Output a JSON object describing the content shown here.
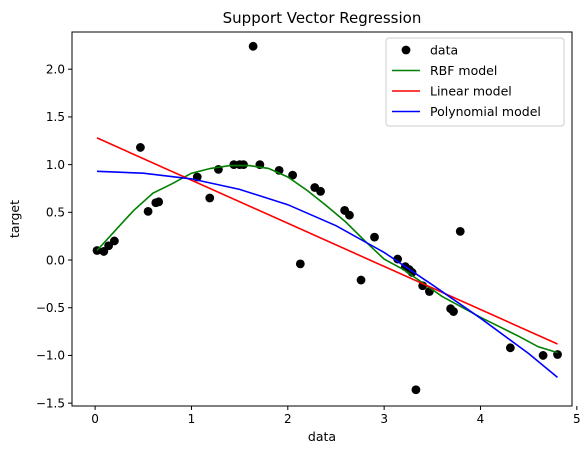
{
  "chart_data": {
    "type": "scatter",
    "title": "Support Vector Regression",
    "xlabel": "data",
    "ylabel": "target",
    "xlim": [
      -0.24,
      4.95
    ],
    "ylim": [
      -1.53,
      2.39
    ],
    "xticks": [
      0,
      1,
      2,
      3,
      4,
      5
    ],
    "yticks": [
      -1.5,
      -1.0,
      -0.5,
      0.0,
      0.5,
      1.0,
      1.5,
      2.0
    ],
    "xtick_labels": [
      "0",
      "1",
      "2",
      "3",
      "4",
      "5"
    ],
    "ytick_labels": [
      "−1.5",
      "−1.0",
      "−0.5",
      "0.0",
      "0.5",
      "1.0",
      "1.5",
      "2.0"
    ],
    "grid": false,
    "legend_position": "top-right",
    "points": {
      "name": "data",
      "color": "#000000",
      "x": [
        0.02,
        0.09,
        0.14,
        0.2,
        0.47,
        0.55,
        0.63,
        0.66,
        1.06,
        1.19,
        1.28,
        1.44,
        1.5,
        1.54,
        1.64,
        1.71,
        1.91,
        2.05,
        2.13,
        2.28,
        2.34,
        2.59,
        2.64,
        2.76,
        2.9,
        3.14,
        3.22,
        3.26,
        3.29,
        3.33,
        3.4,
        3.47,
        3.69,
        3.72,
        3.79,
        4.31,
        4.65,
        4.8
      ],
      "y": [
        0.1,
        0.09,
        0.15,
        0.2,
        1.18,
        0.51,
        0.6,
        0.61,
        0.87,
        0.65,
        0.95,
        1.0,
        1.0,
        1.0,
        2.24,
        1.0,
        0.94,
        0.89,
        -0.04,
        0.76,
        0.72,
        0.52,
        0.47,
        -0.21,
        0.24,
        0.01,
        -0.07,
        -0.1,
        -0.13,
        -1.36,
        -0.27,
        -0.33,
        -0.51,
        -0.54,
        0.3,
        -0.92,
        -1.0,
        -0.99
      ]
    },
    "series": [
      {
        "name": "RBF model",
        "color": "#008000",
        "x": [
          0.02,
          0.2,
          0.4,
          0.6,
          0.8,
          1.0,
          1.2,
          1.4,
          1.6,
          1.8,
          2.0,
          2.2,
          2.4,
          2.6,
          2.8,
          3.0,
          3.2,
          3.4,
          3.6,
          3.8,
          4.0,
          4.2,
          4.4,
          4.6,
          4.8
        ],
        "y": [
          0.1,
          0.3,
          0.52,
          0.7,
          0.8,
          0.91,
          0.96,
          0.99,
          0.99,
          0.96,
          0.87,
          0.73,
          0.57,
          0.4,
          0.2,
          0.01,
          -0.1,
          -0.24,
          -0.38,
          -0.49,
          -0.6,
          -0.7,
          -0.8,
          -0.91,
          -0.97
        ]
      },
      {
        "name": "Linear model",
        "color": "#ff0000",
        "x": [
          0.02,
          4.8
        ],
        "y": [
          1.28,
          -0.88
        ]
      },
      {
        "name": "Polynomial model",
        "color": "#0000ff",
        "x": [
          0.02,
          0.5,
          1.0,
          1.5,
          2.0,
          2.5,
          3.0,
          3.5,
          4.0,
          4.5,
          4.8
        ],
        "y": [
          0.93,
          0.91,
          0.85,
          0.74,
          0.58,
          0.36,
          0.08,
          -0.26,
          -0.61,
          -0.98,
          -1.23
        ]
      }
    ]
  }
}
